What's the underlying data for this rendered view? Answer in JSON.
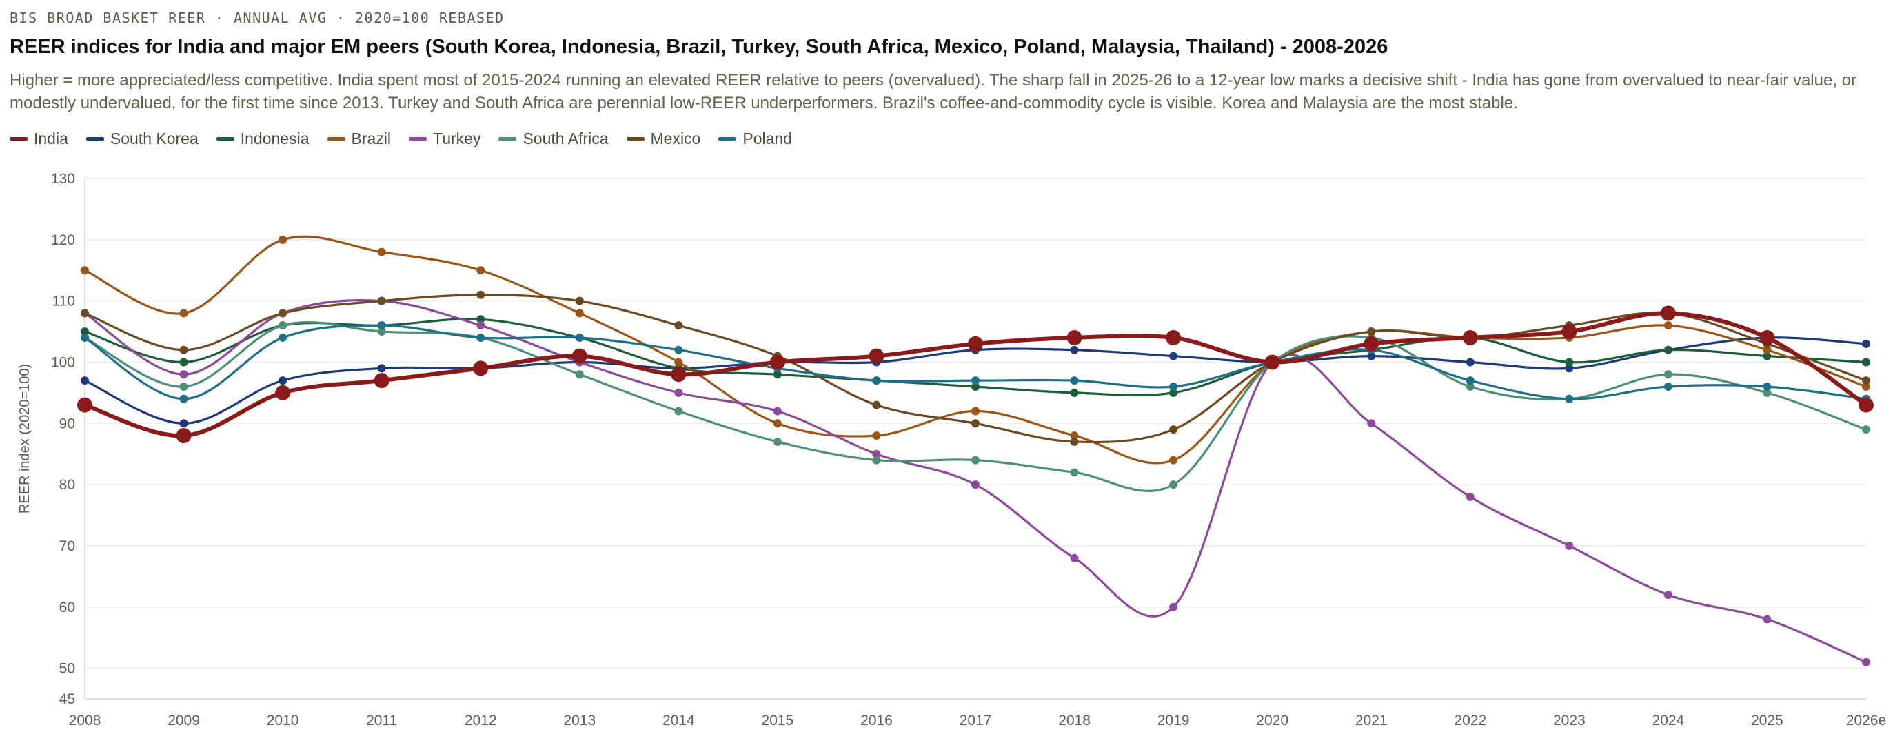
{
  "header": {
    "kicker": "BIS BROAD BASKET REER · ANNUAL AVG · 2020=100 REBASED",
    "title": "REER indices for India and major EM peers (South Korea, Indonesia, Brazil, Turkey, South Africa, Mexico, Poland, Malaysia, Thailand) - 2008-2026",
    "subtitle": "Higher = more appreciated/less competitive. India spent most of 2015-2024 running an elevated REER relative to peers (overvalued). The sharp fall in 2025-26 to a 12-year low marks a decisive shift - India has gone from overvalued to near-fair value, or modestly undervalued, for the first time since 2013. Turkey and South Africa are perennial low-REER underperformers. Brazil's coffee-and-commodity cycle is visible. Korea and Malaysia are the most stable."
  },
  "chart_data": {
    "type": "line",
    "title": "REER indices for India and major EM peers - 2008-2026",
    "xlabel": "",
    "ylabel": "REER index (2020=100)",
    "ylim": [
      45,
      130
    ],
    "yticks": [
      45,
      50,
      60,
      70,
      80,
      90,
      100,
      110,
      120,
      130
    ],
    "grid": true,
    "legend_position": "top-left",
    "x": [
      "2008",
      "2009",
      "2010",
      "2011",
      "2012",
      "2013",
      "2014",
      "2015",
      "2016",
      "2017",
      "2018",
      "2019",
      "2020",
      "2021",
      "2022",
      "2023",
      "2024",
      "2025",
      "2026e"
    ],
    "series": [
      {
        "name": "South Korea",
        "color": "#1f3a7a",
        "highlight": false,
        "values": [
          97,
          90,
          97,
          99,
          99,
          100,
          99,
          100,
          100,
          102,
          102,
          101,
          100,
          101,
          100,
          99,
          102,
          104,
          103
        ]
      },
      {
        "name": "Indonesia",
        "color": "#1d5e3a",
        "highlight": false,
        "values": [
          105,
          100,
          106,
          106,
          107,
          104,
          99,
          98,
          97,
          96,
          95,
          95,
          100,
          102,
          104,
          100,
          102,
          101,
          100
        ]
      },
      {
        "name": "Brazil",
        "color": "#9a5518",
        "highlight": false,
        "values": [
          115,
          108,
          120,
          118,
          115,
          108,
          100,
          90,
          88,
          92,
          88,
          84,
          100,
          105,
          104,
          104,
          106,
          102,
          96
        ]
      },
      {
        "name": "Turkey",
        "color": "#8e4a9a",
        "highlight": false,
        "values": [
          108,
          98,
          108,
          110,
          106,
          100,
          95,
          92,
          85,
          80,
          68,
          60,
          100,
          90,
          78,
          70,
          62,
          58,
          51
        ]
      },
      {
        "name": "South Africa",
        "color": "#4f8f75",
        "highlight": false,
        "values": [
          104,
          96,
          106,
          105,
          104,
          98,
          92,
          87,
          84,
          84,
          82,
          80,
          100,
          104,
          96,
          94,
          98,
          95,
          89
        ]
      },
      {
        "name": "Mexico",
        "color": "#6b4a22",
        "highlight": false,
        "values": [
          108,
          102,
          108,
          110,
          111,
          110,
          106,
          101,
          93,
          90,
          87,
          89,
          100,
          105,
          104,
          106,
          108,
          103,
          97
        ]
      },
      {
        "name": "Poland",
        "color": "#1f6f8b",
        "highlight": false,
        "values": [
          104,
          94,
          104,
          106,
          104,
          104,
          102,
          99,
          97,
          97,
          97,
          96,
          100,
          102,
          97,
          94,
          96,
          96,
          94
        ]
      },
      {
        "name": "India",
        "color": "#8b1a1a",
        "highlight": true,
        "values": [
          93,
          88,
          95,
          97,
          99,
          101,
          98,
          100,
          101,
          103,
          104,
          104,
          100,
          103,
          104,
          105,
          108,
          104,
          93
        ]
      }
    ],
    "legend": [
      "India",
      "South Korea",
      "Indonesia",
      "Brazil",
      "Turkey",
      "South Africa",
      "Mexico",
      "Poland"
    ]
  }
}
